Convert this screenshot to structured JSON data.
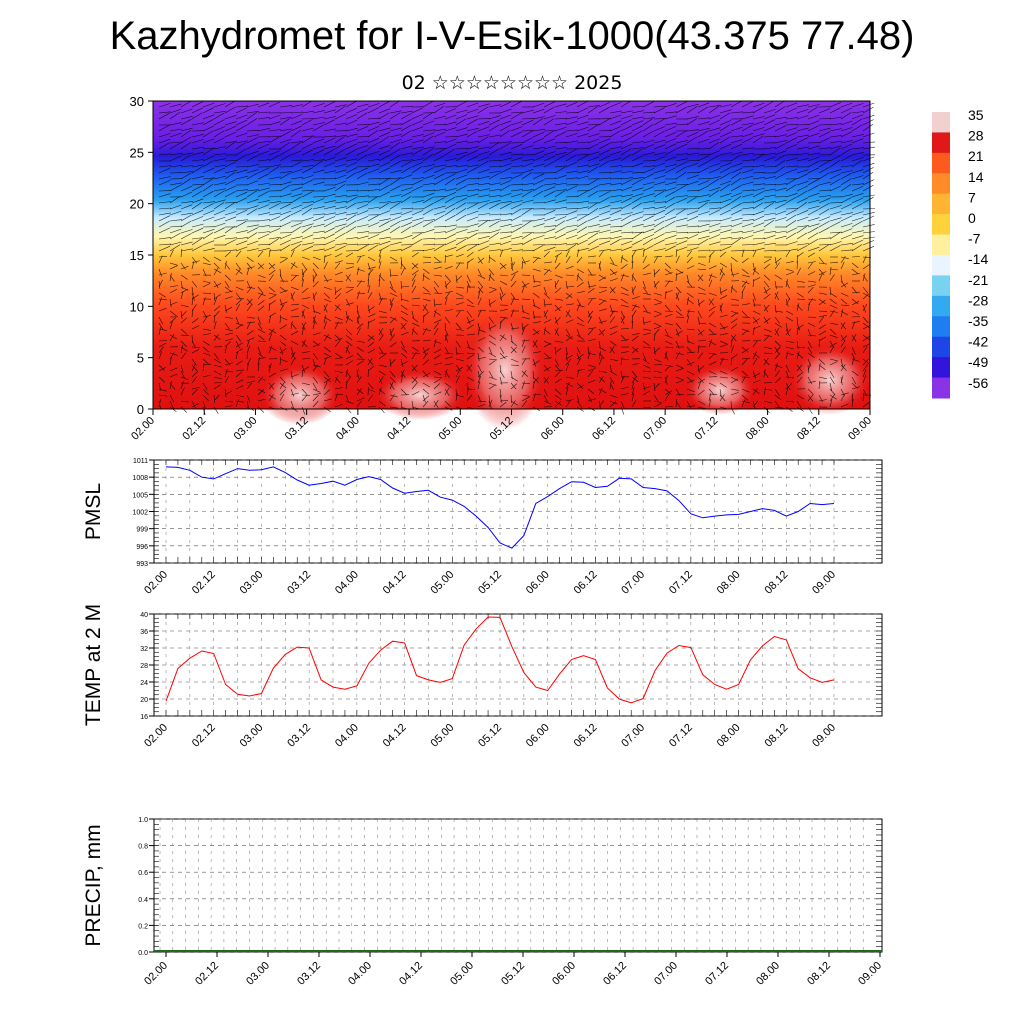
{
  "header": {
    "title": "Kazhydromet for I-V-Esik-1000(43.375 77.48)",
    "subtitle": "02 ☆☆☆☆☆☆☆☆ 2025"
  },
  "time_ticks": [
    "02.00",
    "02.12",
    "03.00",
    "03.12",
    "04.00",
    "04.12",
    "05.00",
    "05.12",
    "06.00",
    "06.12",
    "07.00",
    "07.12",
    "08.00",
    "08.12",
    "09.00"
  ],
  "chart_data": [
    {
      "type": "heatmap",
      "id": "cross-section",
      "ylim": [
        0,
        30
      ],
      "yticks": [
        "0",
        "5",
        "10",
        "15",
        "20",
        "25",
        "30"
      ],
      "colorbar": {
        "labels": [
          "35",
          "28",
          "21",
          "14",
          "7",
          "0",
          "-7",
          "-14",
          "-21",
          "-28",
          "-35",
          "-42",
          "-49",
          "-56"
        ],
        "colors": [
          "#f2d0d0",
          "#e01818",
          "#ff5a1e",
          "#ff8c28",
          "#ffb432",
          "#ffd23c",
          "#fff0a0",
          "#e8f4ff",
          "#78d2f0",
          "#32aaf0",
          "#1e7df0",
          "#1e46e6",
          "#3214dc",
          "#8a32e6"
        ]
      },
      "description_levels": "temperature shading by height with wind barbs"
    },
    {
      "type": "line",
      "id": "pmsl",
      "ylabel": "PMSL",
      "ylim": [
        993,
        1011
      ],
      "yticks": [
        "1011",
        "1008",
        "1005",
        "1002",
        "999",
        "996",
        "993"
      ],
      "color": "#0000ff",
      "x": [
        0,
        3,
        6,
        9,
        12,
        15,
        18,
        21,
        24,
        27,
        30,
        33,
        36,
        39,
        42,
        45,
        48,
        51,
        54,
        57,
        60,
        63,
        66,
        69,
        72,
        75,
        78,
        81,
        84,
        87,
        90,
        93,
        96,
        99,
        102,
        105,
        108,
        111,
        114,
        117,
        120,
        123,
        126,
        129,
        132,
        135,
        138,
        141,
        144,
        147,
        150,
        153,
        156,
        159,
        162,
        165,
        168
      ],
      "values": [
        1009.8,
        1009.7,
        1009.2,
        1008,
        1007.7,
        1008.6,
        1009.5,
        1009.2,
        1009.3,
        1009.8,
        1008.8,
        1007.5,
        1006.6,
        1006.9,
        1007.3,
        1006.6,
        1007.6,
        1008.1,
        1007.6,
        1006.1,
        1005.2,
        1005.5,
        1005.7,
        1004.5,
        1004,
        1002.9,
        1001.2,
        999.2,
        996.5,
        995.6,
        997.8,
        1003.4,
        1004.6,
        1006,
        1007.2,
        1007.1,
        1006.2,
        1006.4,
        1007.8,
        1007.7,
        1006.2,
        1006,
        1005.6,
        1003.9,
        1001.6,
        1000.9,
        1001.2,
        1001.4,
        1001.5,
        1002,
        1002.5,
        1002.2,
        1001.2,
        1002,
        1003.4,
        1003.2,
        1003.4
      ]
    },
    {
      "type": "line",
      "id": "temp2m",
      "ylabel": "TEMP at 2 M",
      "ylim": [
        16,
        40
      ],
      "yticks": [
        "40",
        "36",
        "32",
        "28",
        "24",
        "20",
        "16"
      ],
      "color": "#ff0000",
      "x": [
        0,
        3,
        6,
        9,
        12,
        15,
        18,
        21,
        24,
        27,
        30,
        33,
        36,
        39,
        42,
        45,
        48,
        51,
        54,
        57,
        60,
        63,
        66,
        69,
        72,
        75,
        78,
        81,
        84,
        87,
        90,
        93,
        96,
        99,
        102,
        105,
        108,
        111,
        114,
        117,
        120,
        123,
        126,
        129,
        132,
        135,
        138,
        141,
        144,
        147,
        150,
        153,
        156,
        159,
        162,
        165,
        168
      ],
      "values": [
        19.5,
        27.2,
        29.6,
        31.3,
        30.7,
        23.4,
        21.1,
        20.7,
        21.3,
        27.3,
        30.5,
        32.2,
        32,
        24.5,
        22.8,
        22.3,
        23.1,
        28.4,
        31.5,
        33.6,
        33.2,
        25.5,
        24.5,
        23.9,
        24.8,
        32.7,
        36.5,
        39.3,
        39.2,
        32.3,
        26.2,
        22.8,
        22,
        25.9,
        29.3,
        30.2,
        29.3,
        22.6,
        20,
        19.1,
        20.1,
        26.7,
        30.8,
        32.6,
        32.1,
        25.7,
        23.4,
        22.3,
        23.4,
        29.2,
        32.5,
        34.7,
        33.9,
        27.1,
        25,
        23.9,
        24.5
      ]
    },
    {
      "type": "bar",
      "id": "precip",
      "ylabel": "PRECIP, mm",
      "ylim": [
        0,
        1
      ],
      "yticks": [
        "1.0",
        "0.8",
        "0.6",
        "0.4",
        "0.2",
        "0.0"
      ],
      "values": []
    }
  ]
}
